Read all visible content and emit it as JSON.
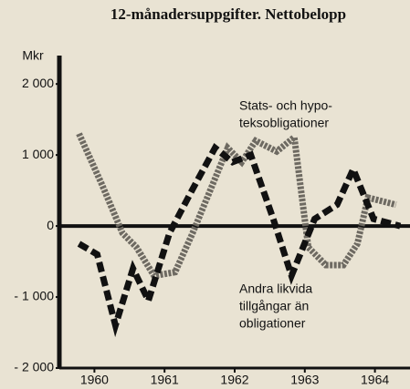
{
  "chart_data": {
    "type": "line",
    "title": "12-månadersuppgifter. Nettobelopp",
    "ylabel": "Mkr",
    "xlim": [
      1959.5,
      1964.5
    ],
    "xticks": [
      1960,
      1961,
      1962,
      1963,
      1964
    ],
    "ylim": [
      -2000,
      2400
    ],
    "yticks": [
      {
        "value": -2000,
        "label": "- 2 000"
      },
      {
        "value": -1000,
        "label": "- 1 000"
      },
      0,
      {
        "value": 1000,
        "label": "1 000"
      },
      {
        "value": 2000,
        "label": "2 000"
      }
    ],
    "series": [
      {
        "label": [
          "Stats- och hypo-",
          "teksobligationer"
        ],
        "color": "#6e6a62",
        "x": [
          1959.78,
          1960.1,
          1960.4,
          1960.6,
          1960.85,
          1961.15,
          1961.4,
          1961.65,
          1961.9,
          1962.1,
          1962.3,
          1962.6,
          1962.85,
          1963.05,
          1963.3,
          1963.55,
          1963.75,
          1963.9,
          1964.3
        ],
        "values": [
          1300,
          600,
          -100,
          -300,
          -700,
          -650,
          -100,
          500,
          1100,
          900,
          1200,
          1050,
          1250,
          -300,
          -550,
          -550,
          -250,
          400,
          300
        ]
      },
      {
        "label": [
          "Andra likvida",
          "tillgångar än",
          "obligationer"
        ],
        "color": "#111111",
        "x": [
          1959.78,
          1960.04,
          1960.3,
          1960.55,
          1960.77,
          1961.07,
          1961.39,
          1961.72,
          1961.97,
          1962.23,
          1962.55,
          1962.81,
          1963.14,
          1963.46,
          1963.69,
          1963.98,
          1964.36
        ],
        "values": [
          -250,
          -400,
          -1400,
          -600,
          -1050,
          -100,
          500,
          1100,
          900,
          1000,
          100,
          -700,
          100,
          300,
          800,
          100,
          0
        ]
      }
    ]
  }
}
